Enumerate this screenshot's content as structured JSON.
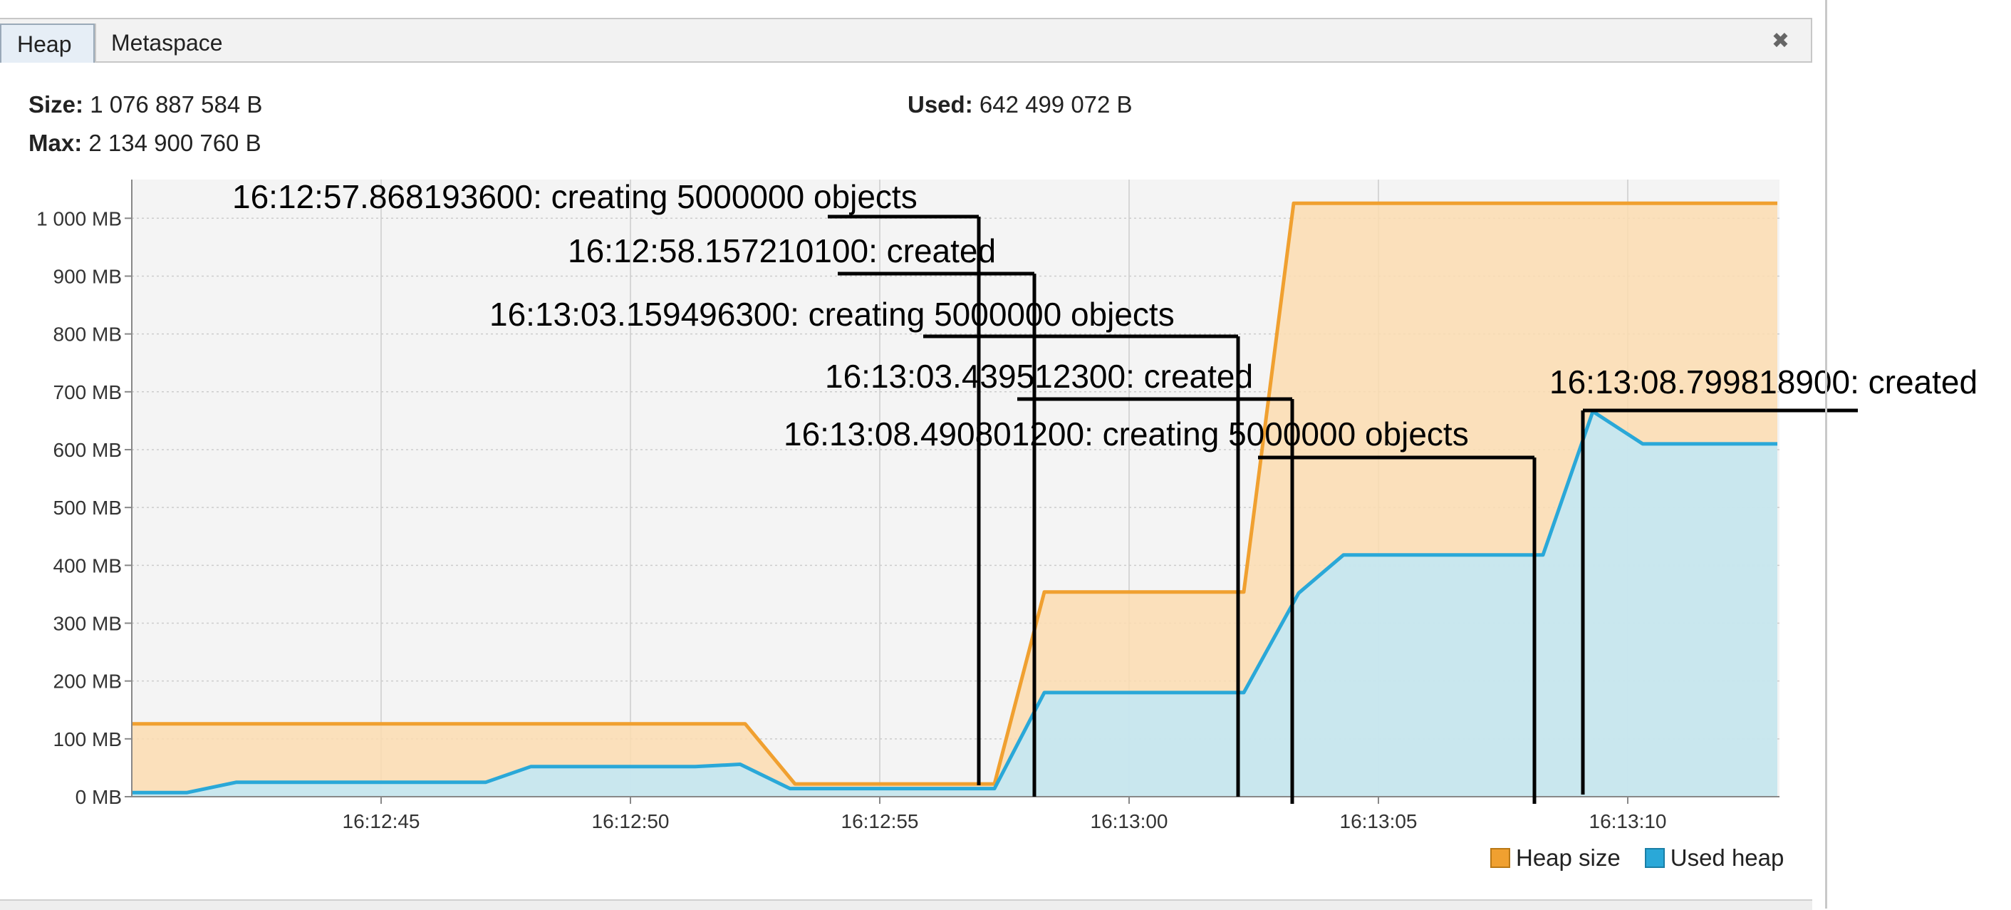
{
  "tabs": [
    {
      "label": "Heap",
      "active": true
    },
    {
      "label": "Metaspace",
      "active": false
    }
  ],
  "close_icon": "close-icon",
  "stats": {
    "size_label": "Size:",
    "size_value": "1 076 887 584 B",
    "max_label": "Max:",
    "max_value": "2 134 900 760 B",
    "used_label": "Used:",
    "used_value": "642 499 072 B"
  },
  "colors": {
    "heap_line": "#f0a030",
    "heap_fill": "#fbdcb0",
    "used_line": "#2aa8d8",
    "used_fill": "#bfe8f7",
    "grid": "#cccccc",
    "plot_bg": "#f4f4f4",
    "annotation": "#000000"
  },
  "chart_data": {
    "type": "area",
    "x_unit": "time (HH:MM:SS)",
    "y_unit": "MB",
    "xlim": [
      "16:12:40",
      "16:13:13"
    ],
    "ylim": [
      0,
      1050
    ],
    "y_ticks": [
      "0 MB",
      "100 MB",
      "200 MB",
      "300 MB",
      "400 MB",
      "500 MB",
      "600 MB",
      "700 MB",
      "800 MB",
      "900 MB",
      "1 000 MB"
    ],
    "y_tick_values": [
      0,
      100,
      200,
      300,
      400,
      500,
      600,
      700,
      800,
      900,
      1000
    ],
    "x_ticks": [
      "16:12:45",
      "16:12:50",
      "16:12:55",
      "16:13:00",
      "16:13:05",
      "16:13:10"
    ],
    "grid": true,
    "legend_placement": "bottom-right",
    "series": [
      {
        "name": "Heap size",
        "points": [
          [
            "16:12:40",
            126
          ],
          [
            "16:12:52.3",
            126
          ],
          [
            "16:12:53.3",
            22
          ],
          [
            "16:12:57.3",
            22
          ],
          [
            "16:12:58.3",
            354
          ],
          [
            "16:13:02.3",
            354
          ],
          [
            "16:13:03.3",
            1026
          ],
          [
            "16:13:13",
            1026
          ]
        ]
      },
      {
        "name": "Used heap",
        "points": [
          [
            "16:12:40",
            7
          ],
          [
            "16:12:41.1",
            7
          ],
          [
            "16:12:42.1",
            25
          ],
          [
            "16:12:47.1",
            25
          ],
          [
            "16:12:48.0",
            52
          ],
          [
            "16:12:51.3",
            52
          ],
          [
            "16:12:52.2",
            56
          ],
          [
            "16:12:53.2",
            14
          ],
          [
            "16:12:57.3",
            14
          ],
          [
            "16:12:58.3",
            180
          ],
          [
            "16:13:02.3",
            180
          ],
          [
            "16:13:03.4",
            352
          ],
          [
            "16:13:04.3",
            418
          ],
          [
            "16:13:08.3",
            418
          ],
          [
            "16:13:09.3",
            666
          ],
          [
            "16:13:10.3",
            610
          ],
          [
            "16:13:13",
            610
          ]
        ]
      }
    ],
    "annotations": [
      {
        "text": "16:12:57.868193600: creating 5000000 objects"
      },
      {
        "text": "16:12:58.157210100: created"
      },
      {
        "text": "16:13:03.159496300: creating 5000000 objects"
      },
      {
        "text": "16:13:03.439512300: created"
      },
      {
        "text": "16:13:08.490801200: creating 5000000 objects"
      },
      {
        "text": "16:13:08.799818900: created"
      }
    ]
  }
}
